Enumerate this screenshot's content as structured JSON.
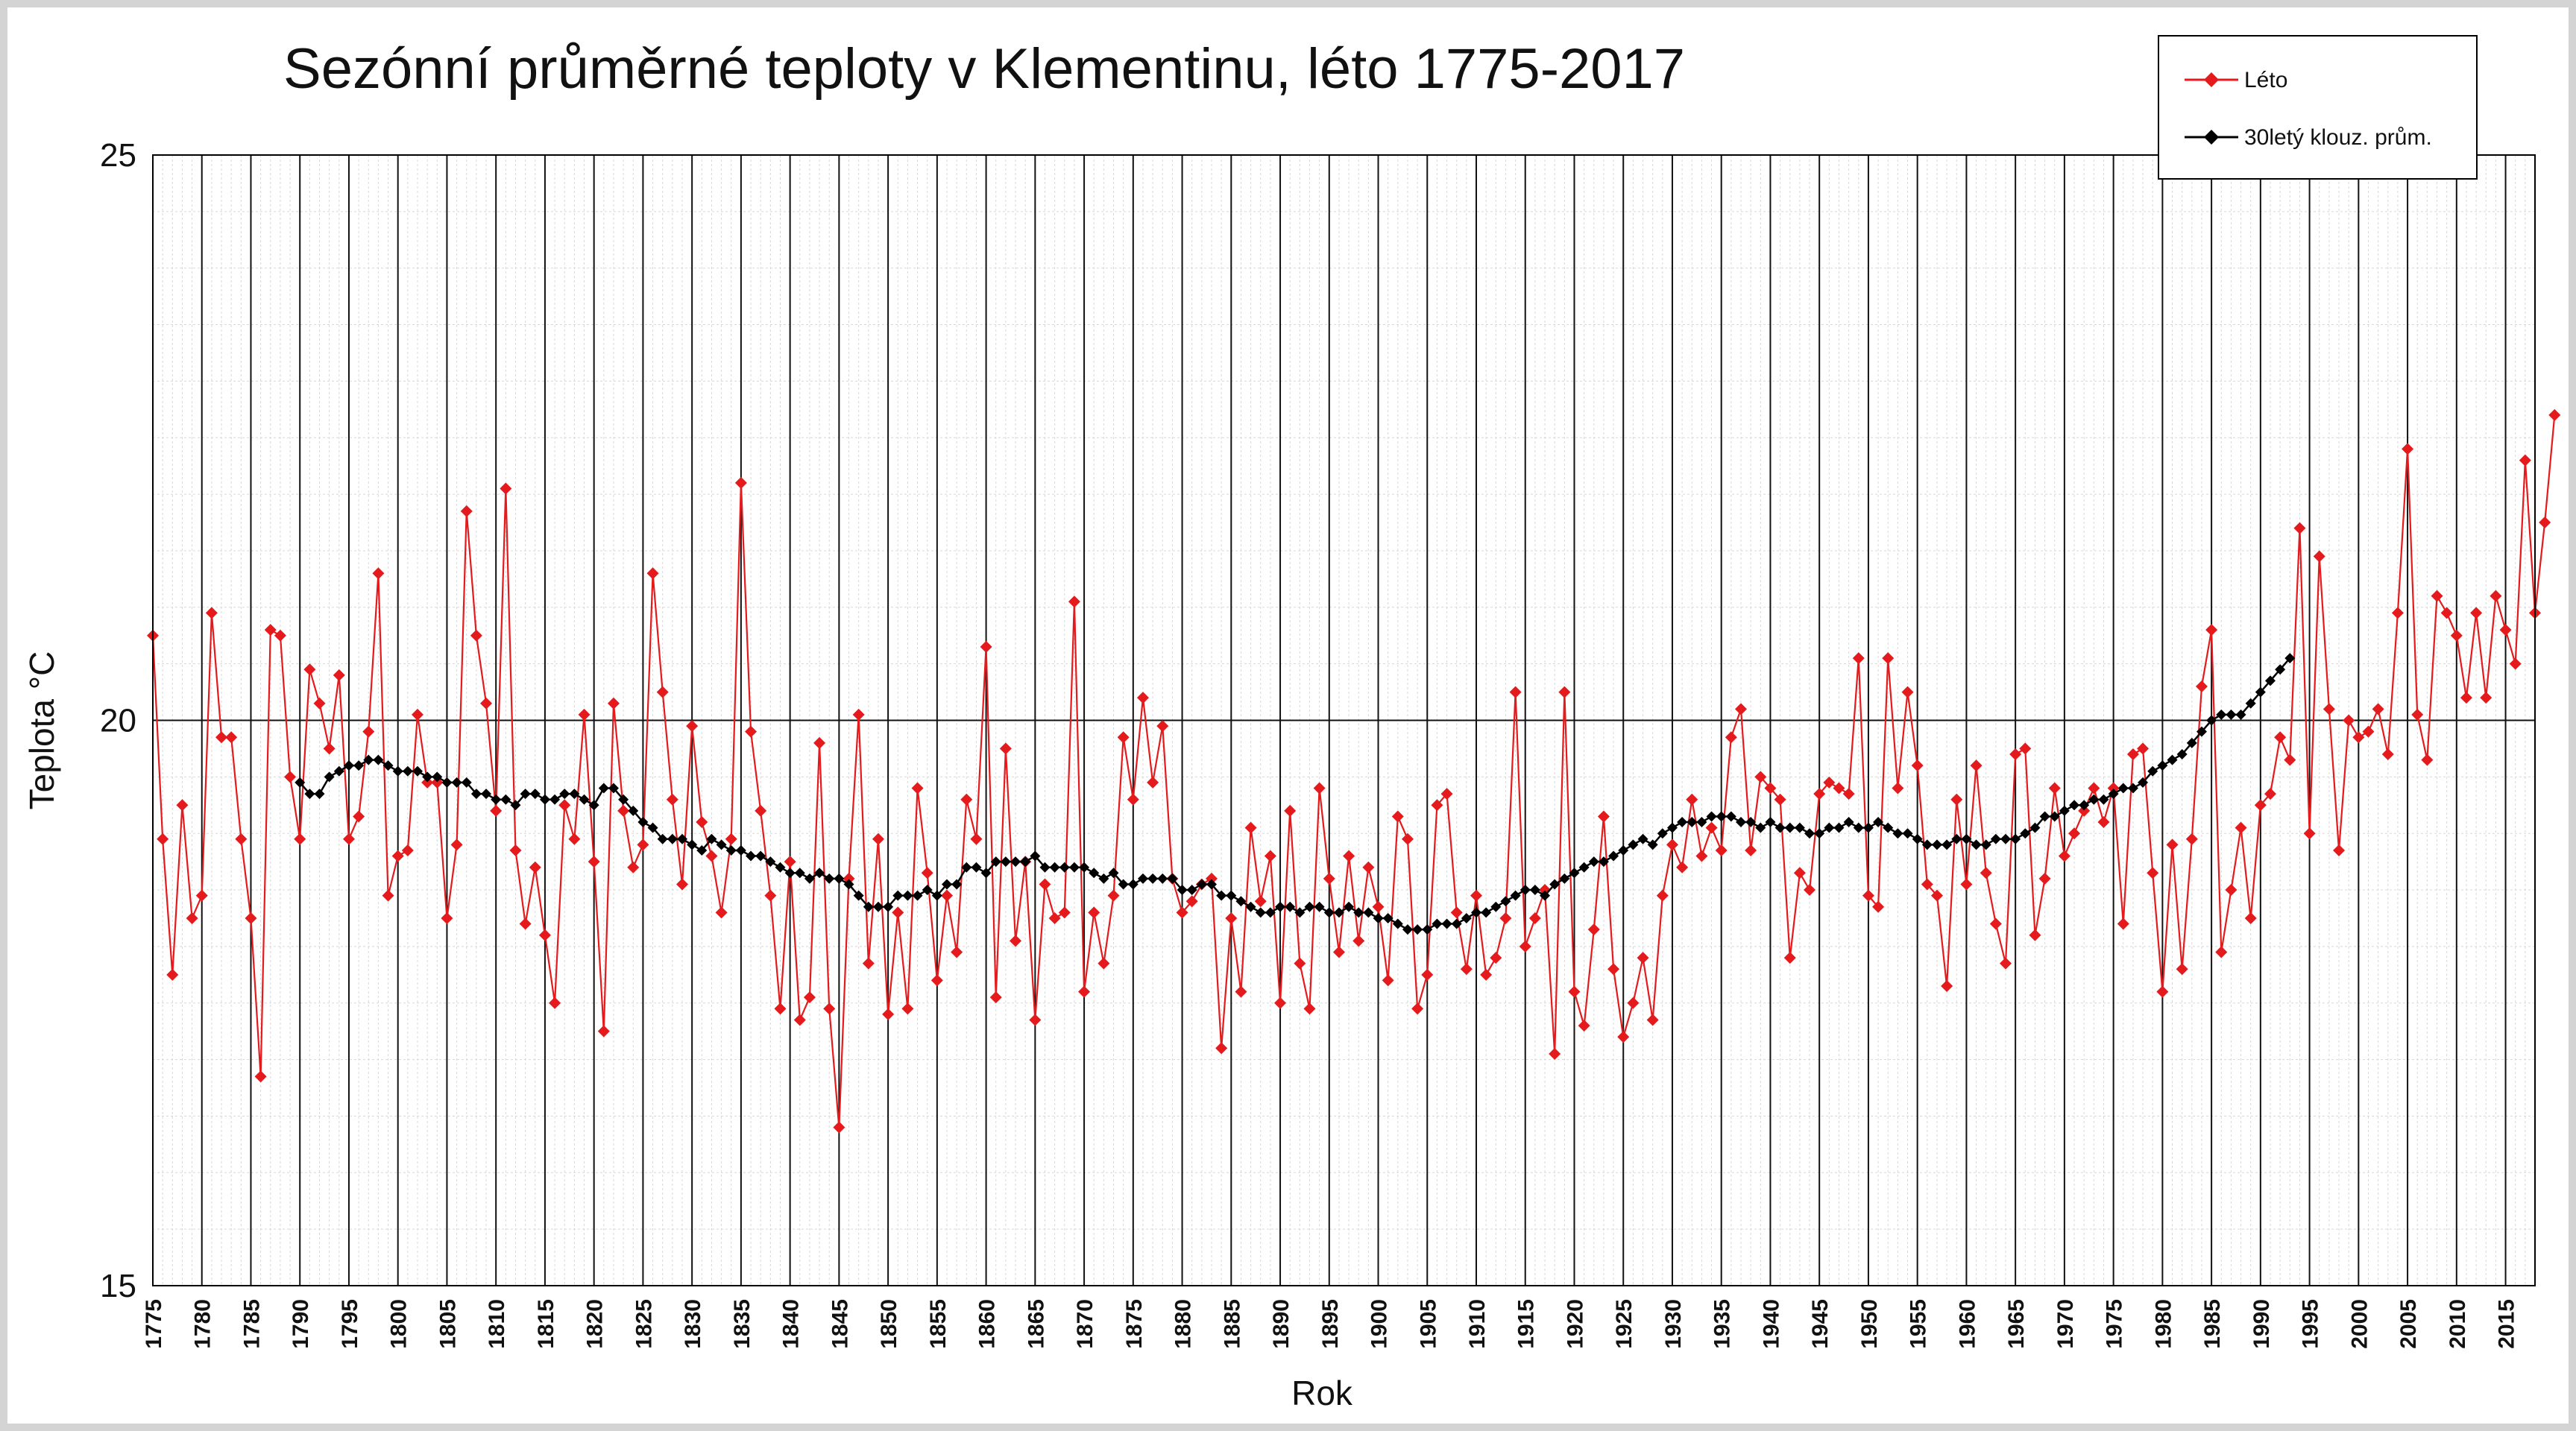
{
  "chart_data": {
    "type": "line",
    "title": "Sezónní průměrné teploty v Klementinu, léto 1775-2017",
    "xlabel": "Rok",
    "ylabel": "Teplota  °C",
    "xlim": [
      1775,
      2018
    ],
    "ylim": [
      15,
      25
    ],
    "yticks": [
      15,
      20,
      25
    ],
    "xticks": [
      1775,
      1780,
      1785,
      1790,
      1795,
      1800,
      1805,
      1810,
      1815,
      1820,
      1825,
      1830,
      1835,
      1840,
      1845,
      1850,
      1855,
      1860,
      1865,
      1870,
      1875,
      1880,
      1885,
      1890,
      1895,
      1900,
      1905,
      1910,
      1915,
      1920,
      1925,
      1930,
      1935,
      1940,
      1945,
      1950,
      1955,
      1960,
      1965,
      1970,
      1975,
      1980,
      1985,
      1990,
      1995,
      2000,
      2005,
      2010,
      2015
    ],
    "grid": true,
    "legend_position": "top-right",
    "series": [
      {
        "name": "Léto",
        "color": "#e41a1c",
        "marker": "diamond",
        "x_start": 1775,
        "values": [
          20.75,
          18.95,
          17.75,
          19.25,
          18.25,
          18.45,
          20.95,
          19.85,
          19.85,
          18.95,
          18.25,
          16.85,
          20.8,
          20.75,
          19.5,
          18.95,
          20.45,
          20.15,
          19.75,
          20.4,
          18.95,
          19.15,
          19.9,
          21.3,
          18.45,
          18.8,
          18.85,
          20.05,
          19.45,
          19.45,
          18.25,
          18.9,
          21.85,
          20.75,
          20.15,
          19.2,
          22.05,
          18.85,
          18.2,
          18.7,
          18.1,
          17.5,
          19.25,
          18.95,
          20.05,
          18.75,
          17.25,
          20.15,
          19.2,
          18.7,
          18.9,
          21.3,
          20.25,
          19.3,
          18.55,
          19.95,
          19.1,
          18.8,
          18.3,
          18.95,
          22.1,
          19.9,
          19.2,
          18.45,
          17.45,
          18.75,
          17.35,
          17.55,
          19.8,
          17.45,
          16.4,
          18.6,
          20.05,
          17.85,
          18.95,
          17.4,
          18.3,
          17.45,
          19.4,
          18.65,
          17.7,
          18.45,
          17.95,
          19.3,
          18.95,
          20.65,
          17.55,
          19.75,
          18.05,
          18.75,
          17.35,
          18.55,
          18.25,
          18.3,
          21.05,
          17.6,
          18.3,
          17.85,
          18.45,
          19.85,
          19.3,
          20.2,
          19.45,
          19.95,
          18.6,
          18.3,
          18.4,
          18.55,
          18.6,
          17.1,
          18.25,
          17.6,
          19.05,
          18.4,
          18.8,
          17.5,
          19.2,
          17.85,
          17.45,
          19.4,
          18.6,
          17.95,
          18.8,
          18.05,
          18.7,
          18.35,
          17.7,
          19.15,
          18.95,
          17.45,
          17.75,
          19.25,
          19.35,
          18.3,
          17.8,
          18.45,
          17.75,
          17.9,
          18.25,
          20.25,
          18.0,
          18.25,
          18.5,
          17.05,
          20.25,
          17.6,
          17.3,
          18.15,
          19.15,
          17.8,
          17.2,
          17.5,
          17.9,
          17.35,
          18.45,
          18.9,
          18.7,
          19.3,
          18.8,
          19.05,
          18.85,
          19.85,
          20.1,
          18.85,
          19.5,
          19.4,
          19.3,
          17.9,
          18.65,
          18.5,
          19.35,
          19.45,
          19.4,
          19.35,
          20.55,
          18.45,
          18.35,
          20.55,
          19.4,
          20.25,
          19.6,
          18.55,
          18.45,
          17.65,
          19.3,
          18.55,
          19.6,
          18.65,
          18.2,
          17.85,
          19.7,
          19.75,
          18.1,
          18.6,
          19.4,
          18.8,
          19.0,
          19.2,
          19.4,
          19.1,
          19.4,
          18.2,
          19.7,
          19.75,
          18.65,
          17.6,
          18.9,
          17.8,
          18.95,
          20.3,
          20.8,
          17.95,
          18.5,
          19.05,
          18.25,
          19.25,
          19.35,
          19.85,
          19.65,
          21.7,
          19.0,
          21.45,
          20.1,
          18.85,
          20.0,
          19.85,
          19.9,
          20.1,
          19.7,
          20.95,
          22.4,
          20.05,
          19.65,
          21.1,
          20.95,
          20.75,
          20.2,
          20.95,
          20.2,
          21.1,
          20.8,
          20.5,
          22.3,
          20.95,
          21.75,
          22.7
        ]
      },
      {
        "name": "30letý klouz. prům.",
        "color": "#000000",
        "marker": "diamond",
        "x_start": 1790,
        "values": [
          19.45,
          19.35,
          19.35,
          19.5,
          19.55,
          19.6,
          19.6,
          19.65,
          19.65,
          19.6,
          19.55,
          19.55,
          19.55,
          19.5,
          19.5,
          19.45,
          19.45,
          19.45,
          19.35,
          19.35,
          19.3,
          19.3,
          19.25,
          19.35,
          19.35,
          19.3,
          19.3,
          19.35,
          19.35,
          19.3,
          19.25,
          19.4,
          19.4,
          19.3,
          19.2,
          19.1,
          19.05,
          18.95,
          18.95,
          18.95,
          18.9,
          18.85,
          18.95,
          18.9,
          18.85,
          18.85,
          18.8,
          18.8,
          18.75,
          18.7,
          18.65,
          18.65,
          18.6,
          18.65,
          18.6,
          18.6,
          18.55,
          18.45,
          18.35,
          18.35,
          18.35,
          18.45,
          18.45,
          18.45,
          18.5,
          18.45,
          18.55,
          18.55,
          18.7,
          18.7,
          18.65,
          18.75,
          18.75,
          18.75,
          18.75,
          18.8,
          18.7,
          18.7,
          18.7,
          18.7,
          18.7,
          18.65,
          18.6,
          18.65,
          18.55,
          18.55,
          18.6,
          18.6,
          18.6,
          18.6,
          18.5,
          18.5,
          18.55,
          18.55,
          18.45,
          18.45,
          18.4,
          18.35,
          18.3,
          18.3,
          18.35,
          18.35,
          18.3,
          18.35,
          18.35,
          18.3,
          18.3,
          18.35,
          18.3,
          18.3,
          18.25,
          18.25,
          18.2,
          18.15,
          18.15,
          18.15,
          18.2,
          18.2,
          18.2,
          18.25,
          18.3,
          18.3,
          18.35,
          18.4,
          18.45,
          18.5,
          18.5,
          18.45,
          18.55,
          18.6,
          18.65,
          18.7,
          18.75,
          18.75,
          18.8,
          18.85,
          18.9,
          18.95,
          18.9,
          19.0,
          19.05,
          19.1,
          19.1,
          19.1,
          19.15,
          19.15,
          19.15,
          19.1,
          19.1,
          19.05,
          19.1,
          19.05,
          19.05,
          19.05,
          19.0,
          19.0,
          19.05,
          19.05,
          19.1,
          19.05,
          19.05,
          19.1,
          19.05,
          19.0,
          19.0,
          18.95,
          18.9,
          18.9,
          18.9,
          18.95,
          18.95,
          18.9,
          18.9,
          18.95,
          18.95,
          18.95,
          19.0,
          19.05,
          19.15,
          19.15,
          19.2,
          19.25,
          19.25,
          19.3,
          19.3,
          19.35,
          19.4,
          19.4,
          19.45,
          19.55,
          19.6,
          19.65,
          19.7,
          19.8,
          19.9,
          20.0,
          20.05,
          20.05,
          20.05,
          20.15,
          20.25,
          20.35,
          20.45,
          20.55
        ]
      }
    ]
  }
}
